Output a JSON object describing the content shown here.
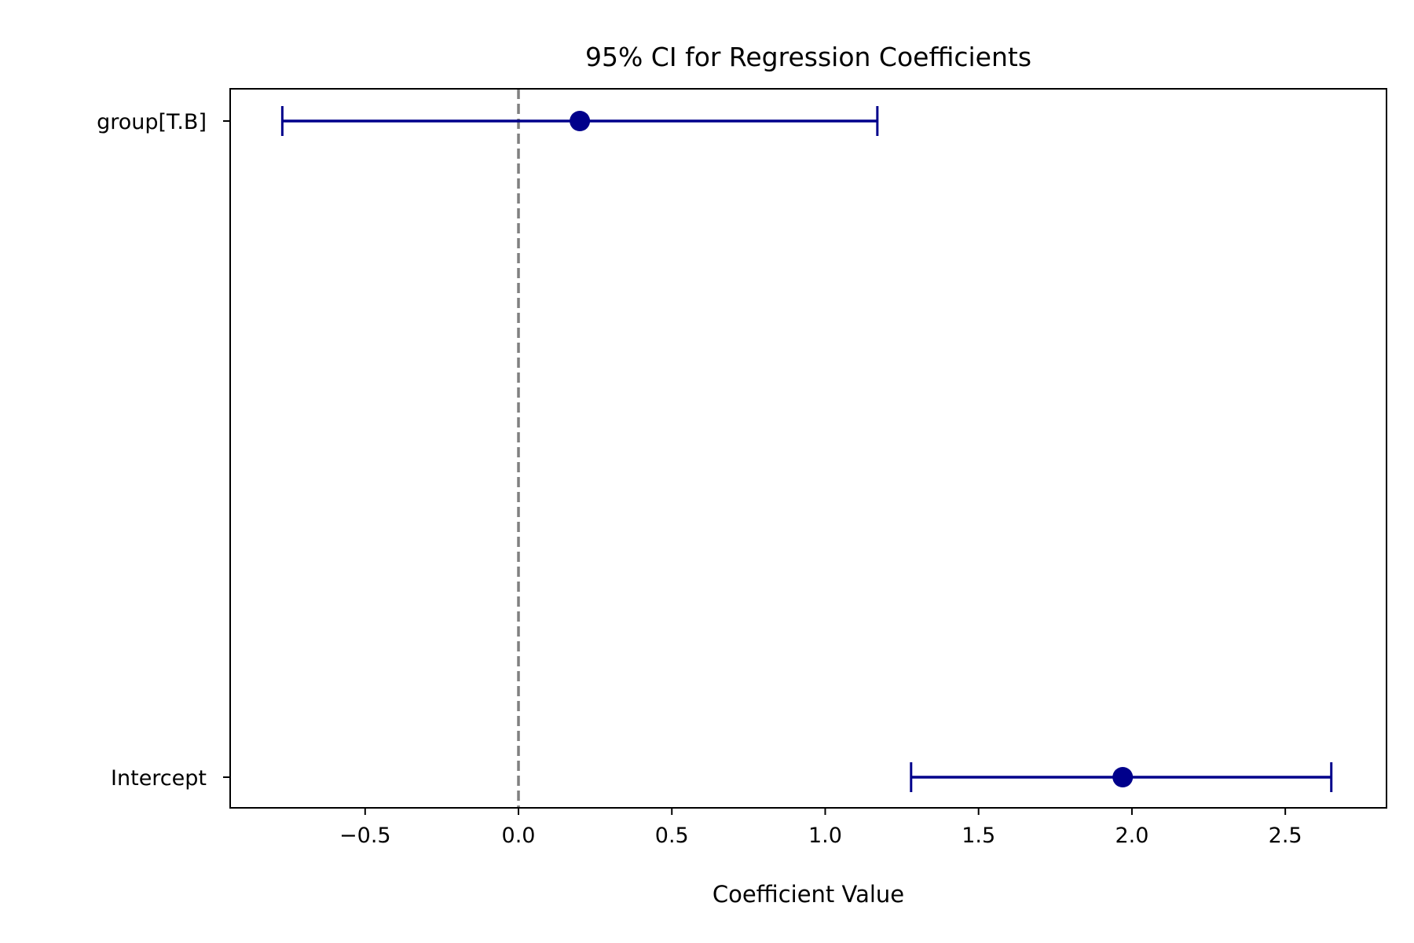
{
  "chart_data": {
    "type": "errorbar",
    "title": "95% CI for Regression Coefficients",
    "xlabel": "Coefficient Value",
    "ylabel": "",
    "xlim": [
      -0.94,
      2.83
    ],
    "xticks": [
      -0.5,
      0.0,
      0.5,
      1.0,
      1.5,
      2.0,
      2.5
    ],
    "xtick_labels": [
      "−0.5",
      "0.0",
      "0.5",
      "1.0",
      "1.5",
      "2.0",
      "2.5"
    ],
    "categories": [
      "Intercept",
      "group[T.B]"
    ],
    "series": [
      {
        "estimates": [
          1.97,
          0.2
        ],
        "ci_lower": [
          1.28,
          -0.77
        ],
        "ci_upper": [
          2.65,
          1.17
        ]
      }
    ],
    "reference_line": {
      "x": 0,
      "style": "dashed",
      "color": "#808080"
    },
    "grid": false,
    "colors": {
      "series": "#00008b",
      "axis": "#000000"
    }
  }
}
